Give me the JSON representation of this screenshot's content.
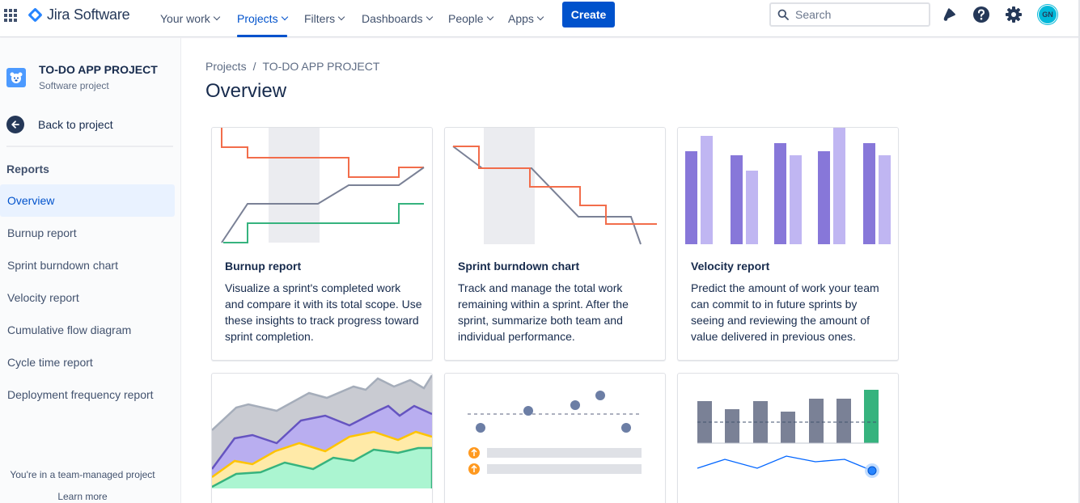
{
  "nav": {
    "logo_text": "Jira Software",
    "items": [
      {
        "label": "Your work"
      },
      {
        "label": "Projects"
      },
      {
        "label": "Filters"
      },
      {
        "label": "Dashboards"
      },
      {
        "label": "People"
      },
      {
        "label": "Apps"
      }
    ],
    "active_item": "Projects",
    "create_label": "Create",
    "search_placeholder": "Search",
    "avatar_initials": "GN",
    "icons": [
      "app-switcher-icon",
      "notifications-icon",
      "help-icon",
      "settings-icon"
    ],
    "accent_color": "#0052cc"
  },
  "sidebar": {
    "project_name": "TO-DO APP PROJECT",
    "project_type": "Software project",
    "back_label": "Back to project",
    "section_heading": "Reports",
    "items": [
      {
        "label": "Overview"
      },
      {
        "label": "Burnup report"
      },
      {
        "label": "Sprint burndown chart"
      },
      {
        "label": "Velocity report"
      },
      {
        "label": "Cumulative flow diagram"
      },
      {
        "label": "Cycle time report"
      },
      {
        "label": "Deployment frequency report"
      }
    ],
    "active_item": "Overview",
    "footer_note": "You're in a team-managed project",
    "learn_more": "Learn more"
  },
  "main": {
    "breadcrumb": [
      "Projects",
      "TO-DO APP PROJECT"
    ],
    "breadcrumb_separator": "/",
    "title": "Overview",
    "cards": [
      {
        "title": "Burnup report",
        "description": "Visualize a sprint's completed work and compare it with its total scope. Use these insights to track progress toward sprint completion."
      },
      {
        "title": "Sprint burndown chart",
        "description": "Track and manage the total work remaining within a sprint. After the sprint, summarize both team and individual performance."
      },
      {
        "title": "Velocity report",
        "description": "Predict the amount of work your team can commit to in future sprints by seeing and reviewing the amount of value delivered in previous ones."
      },
      {
        "title": "",
        "description": ""
      },
      {
        "title": "",
        "description": ""
      },
      {
        "title": "",
        "description": ""
      }
    ],
    "chart_colors": {
      "scope": "#f26d4b",
      "gray": "#7a8196",
      "green": "#36b37e",
      "purple_dark": "#8777d9",
      "purple_light": "#c0b6f2",
      "yellow": "#ffc400",
      "orange_icon": "#ff991f",
      "blue_dot": "#2684ff"
    }
  }
}
